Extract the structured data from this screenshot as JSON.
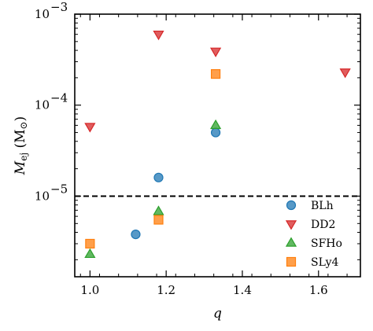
{
  "chart_data": {
    "type": "scatter",
    "xlabel": "q",
    "ylabel_main": "M",
    "ylabel_sub": "ej",
    "ylabel_unit": "(M",
    "ylabel_unit_sub": "⊙",
    "ylabel_unit_close": ")",
    "xlim": [
      0.96,
      1.71
    ],
    "ylim": [
      1.3e-06,
      0.001
    ],
    "yscale": "log",
    "x_ticks": [
      {
        "value": 1.0,
        "label": "1.0"
      },
      {
        "value": 1.2,
        "label": "1.2"
      },
      {
        "value": 1.4,
        "label": "1.4"
      },
      {
        "value": 1.6,
        "label": "1.6"
      }
    ],
    "y_ticks": [
      {
        "value": 1e-05,
        "base": "10",
        "exp": "−5"
      },
      {
        "value": 0.0001,
        "base": "10",
        "exp": "−4"
      },
      {
        "value": 0.001,
        "base": "10",
        "exp": "−3"
      }
    ],
    "hline": {
      "value": 1e-05,
      "style": "dashed",
      "color": "#000000"
    },
    "legend_position": "lower-right",
    "series": [
      {
        "name": "BLh",
        "marker": "circle",
        "color": "#1f77b4",
        "points": [
          {
            "x": 1.12,
            "y": 3.8e-06
          },
          {
            "x": 1.18,
            "y": 1.6e-05
          },
          {
            "x": 1.33,
            "y": 5e-05
          }
        ]
      },
      {
        "name": "DD2",
        "marker": "triangle-down",
        "color": "#d62728",
        "points": [
          {
            "x": 1.0,
            "y": 5.8e-05
          },
          {
            "x": 1.18,
            "y": 0.0006
          },
          {
            "x": 1.33,
            "y": 0.00039
          },
          {
            "x": 1.67,
            "y": 0.00023
          }
        ]
      },
      {
        "name": "SFHo",
        "marker": "triangle-up",
        "color": "#2ca02c",
        "points": [
          {
            "x": 1.0,
            "y": 2.3e-06
          },
          {
            "x": 1.18,
            "y": 6.8e-06
          },
          {
            "x": 1.33,
            "y": 6e-05
          }
        ]
      },
      {
        "name": "SLy4",
        "marker": "square",
        "color": "#ff7f0e",
        "points": [
          {
            "x": 1.0,
            "y": 3e-06
          },
          {
            "x": 1.18,
            "y": 5.5e-06
          },
          {
            "x": 1.33,
            "y": 0.00022
          }
        ]
      }
    ]
  }
}
